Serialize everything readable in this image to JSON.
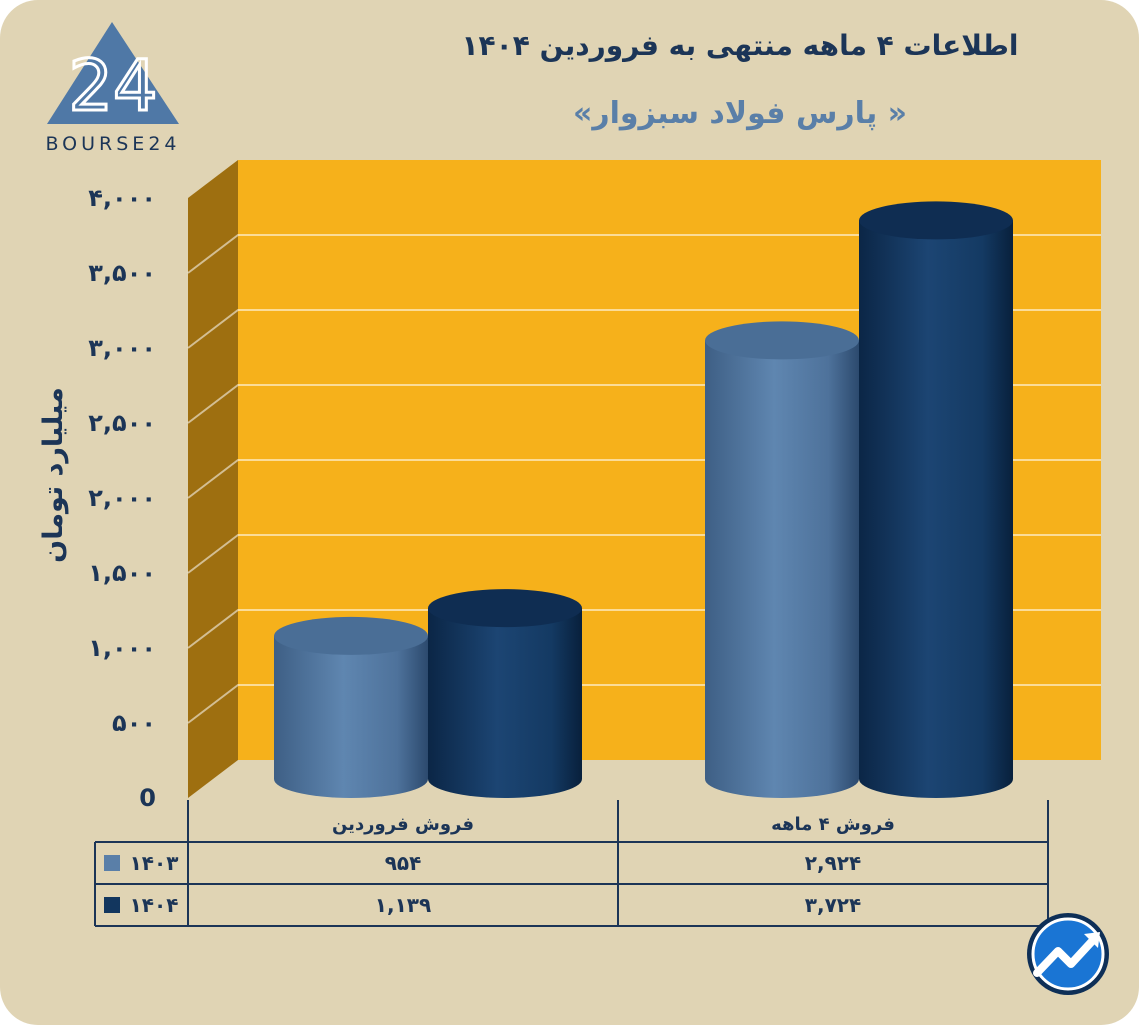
{
  "logo": {
    "text": "BOURSE24",
    "mark": "24"
  },
  "chart_data": {
    "type": "bar",
    "title": "اطلاعات ۴ ماهه منتهی به فروردین ۱۴۰۴",
    "subtitle": "« پارس فولاد سبزوار»",
    "ylabel": "میلیارد تومان",
    "ylim": [
      0,
      4000
    ],
    "yticks": [
      0,
      500,
      1000,
      1500,
      2000,
      2500,
      3000,
      3500,
      4000
    ],
    "ytick_labels": [
      "0",
      "۵۰۰",
      "۱,۰۰۰",
      "۱,۵۰۰",
      "۲,۰۰۰",
      "۲,۵۰۰",
      "۳,۰۰۰",
      "۳,۵۰۰",
      "۴,۰۰۰"
    ],
    "categories": [
      "فروش فروردین",
      "فروش ۴ ماهه"
    ],
    "series": [
      {
        "name": "۱۴۰۳",
        "values": [
          954,
          2924
        ],
        "value_labels": [
          "۹۵۴",
          "۲,۹۲۴"
        ],
        "color": "#5a7fa8"
      },
      {
        "name": "۱۴۰۴",
        "values": [
          1139,
          3724
        ],
        "value_labels": [
          "۱,۱۳۹",
          "۳,۷۲۴"
        ],
        "color": "#12365e"
      }
    ],
    "grid": true,
    "legend": "bottom-left"
  },
  "colors": {
    "background": "#e0d4b4",
    "plot": "#f6b11b",
    "side_wall": "#9e6f10",
    "text": "#1c3557"
  },
  "icons": [
    "trend-arrow-icon"
  ]
}
